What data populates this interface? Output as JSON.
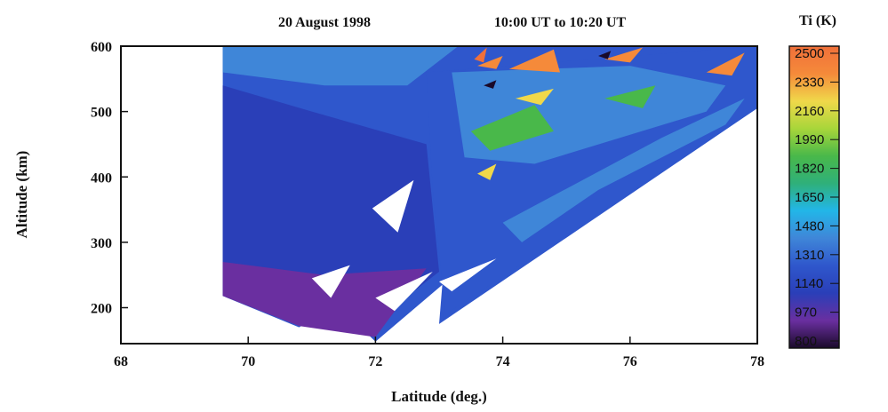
{
  "chart_data": {
    "type": "heatmap",
    "title_date": "20 August 1998",
    "title_time": "10:00 UT to 10:20 UT",
    "xlabel": "Latitude (deg.)",
    "ylabel": "Altitude (km)",
    "xlim": [
      68,
      78
    ],
    "ylim": [
      145,
      600
    ],
    "x_ticks": [
      68,
      70,
      72,
      74,
      76,
      78
    ],
    "y_ticks": [
      200,
      300,
      400,
      500,
      600
    ],
    "colorbar": {
      "title": "Ti (K)",
      "range": [
        800,
        2500
      ],
      "ticks": [
        2500,
        2330,
        2160,
        1990,
        1820,
        1650,
        1480,
        1310,
        1140,
        970,
        800
      ],
      "colors": [
        "#1a0a2a",
        "#6a2fa0",
        "#2a3fb8",
        "#2f57cc",
        "#3f86d8",
        "#22b6e8",
        "#2fb07a",
        "#49b84a",
        "#a8d63a",
        "#f0d84a",
        "#f58a3a",
        "#f0703a"
      ]
    },
    "coverage": {
      "outline": [
        [
          69.6,
          600
        ],
        [
          78.0,
          600
        ],
        [
          78.0,
          505
        ],
        [
          73.0,
          175
        ],
        [
          73.05,
          235
        ],
        [
          72.0,
          148
        ],
        [
          71.4,
          205
        ],
        [
          70.8,
          170
        ],
        [
          69.6,
          218
        ]
      ],
      "gaps": [
        {
          "outline": [
            [
              71.95,
              352
            ],
            [
              72.6,
              395
            ],
            [
              72.35,
              315
            ]
          ]
        },
        {
          "outline": [
            [
              72.0,
              215
            ],
            [
              72.9,
              255
            ],
            [
              72.3,
              195
            ]
          ]
        },
        {
          "outline": [
            [
              71.0,
              245
            ],
            [
              71.6,
              265
            ],
            [
              71.3,
              215
            ]
          ]
        },
        {
          "outline": [
            [
              73.0,
              240
            ],
            [
              73.9,
              275
            ],
            [
              73.2,
              225
            ]
          ]
        }
      ]
    },
    "regions": [
      {
        "ti": 1140,
        "outline": [
          [
            69.6,
            540
          ],
          [
            71.0,
            500
          ],
          [
            72.8,
            450
          ],
          [
            73.0,
            255
          ],
          [
            72.0,
            180
          ],
          [
            70.8,
            180
          ],
          [
            69.6,
            218
          ]
        ]
      },
      {
        "ti": 970,
        "outline": [
          [
            69.6,
            270
          ],
          [
            71.2,
            250
          ],
          [
            72.8,
            260
          ],
          [
            72.0,
            155
          ],
          [
            70.8,
            172
          ],
          [
            69.6,
            218
          ]
        ]
      },
      {
        "ti": 1480,
        "outline": [
          [
            69.6,
            600
          ],
          [
            73.3,
            600
          ],
          [
            72.5,
            540
          ],
          [
            71.2,
            540
          ],
          [
            69.6,
            560
          ]
        ]
      },
      {
        "ti": 1310,
        "outline": [
          [
            72.8,
            560
          ],
          [
            78.0,
            600
          ],
          [
            78.0,
            505
          ],
          [
            73.1,
            190
          ],
          [
            72.9,
            380
          ]
        ]
      },
      {
        "ti": 1480,
        "outline": [
          [
            73.2,
            560
          ],
          [
            76.0,
            570
          ],
          [
            77.5,
            540
          ],
          [
            77.2,
            500
          ],
          [
            74.5,
            420
          ],
          [
            73.4,
            430
          ]
        ]
      },
      {
        "ti": 1480,
        "outline": [
          [
            74.0,
            330
          ],
          [
            76.5,
            460
          ],
          [
            77.8,
            520
          ],
          [
            77.5,
            480
          ],
          [
            75.5,
            380
          ],
          [
            74.3,
            300
          ]
        ]
      },
      {
        "ti": 1820,
        "outline": [
          [
            73.5,
            470
          ],
          [
            74.5,
            510
          ],
          [
            74.8,
            470
          ],
          [
            73.8,
            440
          ]
        ]
      },
      {
        "ti": 1820,
        "outline": [
          [
            75.6,
            520
          ],
          [
            76.4,
            540
          ],
          [
            76.2,
            505
          ]
        ]
      },
      {
        "ti": 2160,
        "outline": [
          [
            74.2,
            520
          ],
          [
            74.8,
            535
          ],
          [
            74.6,
            510
          ]
        ]
      },
      {
        "ti": 2160,
        "outline": [
          [
            73.6,
            405
          ],
          [
            73.9,
            420
          ],
          [
            73.8,
            395
          ]
        ]
      },
      {
        "ti": 2330,
        "outline": [
          [
            74.1,
            565
          ],
          [
            74.8,
            595
          ],
          [
            74.9,
            560
          ]
        ]
      },
      {
        "ti": 2330,
        "outline": [
          [
            73.6,
            570
          ],
          [
            74.0,
            585
          ],
          [
            73.9,
            565
          ]
        ]
      },
      {
        "ti": 2330,
        "outline": [
          [
            77.2,
            560
          ],
          [
            77.8,
            590
          ],
          [
            77.6,
            555
          ]
        ]
      },
      {
        "ti": 2330,
        "outline": [
          [
            75.6,
            580
          ],
          [
            76.2,
            598
          ],
          [
            76.0,
            575
          ]
        ]
      },
      {
        "ti": 2500,
        "outline": [
          [
            73.55,
            580
          ],
          [
            73.75,
            598
          ],
          [
            73.7,
            575
          ]
        ]
      },
      {
        "ti": 800,
        "outline": [
          [
            73.7,
            540
          ],
          [
            73.9,
            548
          ],
          [
            73.85,
            535
          ]
        ]
      },
      {
        "ti": 800,
        "outline": [
          [
            75.5,
            585
          ],
          [
            75.7,
            593
          ],
          [
            75.65,
            580
          ]
        ]
      }
    ]
  }
}
